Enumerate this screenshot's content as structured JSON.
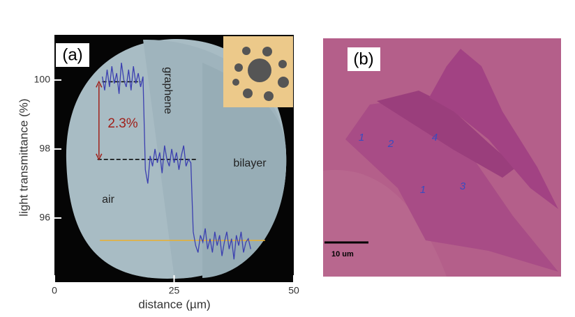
{
  "chart_data": {
    "type": "line",
    "panel_label": "(a)",
    "xlabel": "distance (µm)",
    "ylabel": "light transmittance (%)",
    "xlim": [
      0,
      50
    ],
    "ylim": [
      94.14,
      101.31
    ],
    "xticks": [
      0,
      25,
      50
    ],
    "yticks": [
      96,
      98,
      100
    ],
    "color": "#3b3fb0",
    "x": [
      10,
      10.5,
      11,
      11.5,
      12,
      12.5,
      13,
      13.5,
      14,
      14.5,
      15,
      15.5,
      16,
      16.5,
      17,
      17.5,
      18,
      18.5,
      19,
      19.5,
      20,
      20.5,
      21,
      21.5,
      22,
      22.5,
      23,
      23.5,
      24,
      24.5,
      25,
      25.5,
      26,
      26.5,
      27,
      27.5,
      28,
      28.5,
      29,
      29.5,
      30,
      30.5,
      31,
      31.5,
      32,
      32.5,
      33,
      33.5,
      34,
      34.5,
      35,
      35.5,
      36,
      36.5,
      37,
      37.5,
      38,
      38.5,
      39,
      39.5,
      40,
      40.5,
      41
    ],
    "values": [
      100.1,
      99.7,
      100.3,
      99.8,
      100.4,
      99.9,
      100.2,
      99.6,
      100.5,
      100.0,
      99.8,
      100.3,
      99.7,
      100.4,
      99.9,
      100.2,
      99.8,
      100.1,
      97.4,
      97.0,
      97.8,
      97.5,
      98.0,
      97.6,
      97.9,
      97.3,
      98.1,
      97.7,
      97.5,
      98.0,
      97.6,
      97.9,
      97.4,
      97.8,
      98.1,
      97.5,
      97.7,
      97.6,
      95.6,
      95.2,
      95.0,
      95.5,
      95.3,
      95.7,
      95.1,
      95.4,
      95.0,
      95.6,
      95.2,
      95.5,
      94.9,
      95.3,
      95.6,
      95.1,
      95.4,
      94.8,
      95.5,
      95.2,
      95.6,
      95.0,
      95.3,
      95.4,
      95.1
    ],
    "reference_lines": [
      {
        "value": 99.95,
        "x": [
          10,
          18
        ],
        "color": "#000000",
        "dashed": true
      },
      {
        "value": 97.7,
        "x": [
          9,
          30
        ],
        "color": "#000000",
        "dashed": true
      },
      {
        "value": 95.35,
        "x": [
          9.5,
          44
        ],
        "color": "#e8b030",
        "dashed": false
      }
    ],
    "arrow": {
      "x": 9.3,
      "from": 99.95,
      "to": 97.7,
      "color": "#a0201a"
    },
    "annotations": {
      "difference": "2.3%",
      "graphene": "graphene",
      "bilayer": "bilayer",
      "air": "air"
    }
  },
  "panel_b": {
    "label": "(b)",
    "layer_labels": [
      "1",
      "2",
      "4",
      "1",
      "3"
    ],
    "scale_bar": "10 um"
  }
}
